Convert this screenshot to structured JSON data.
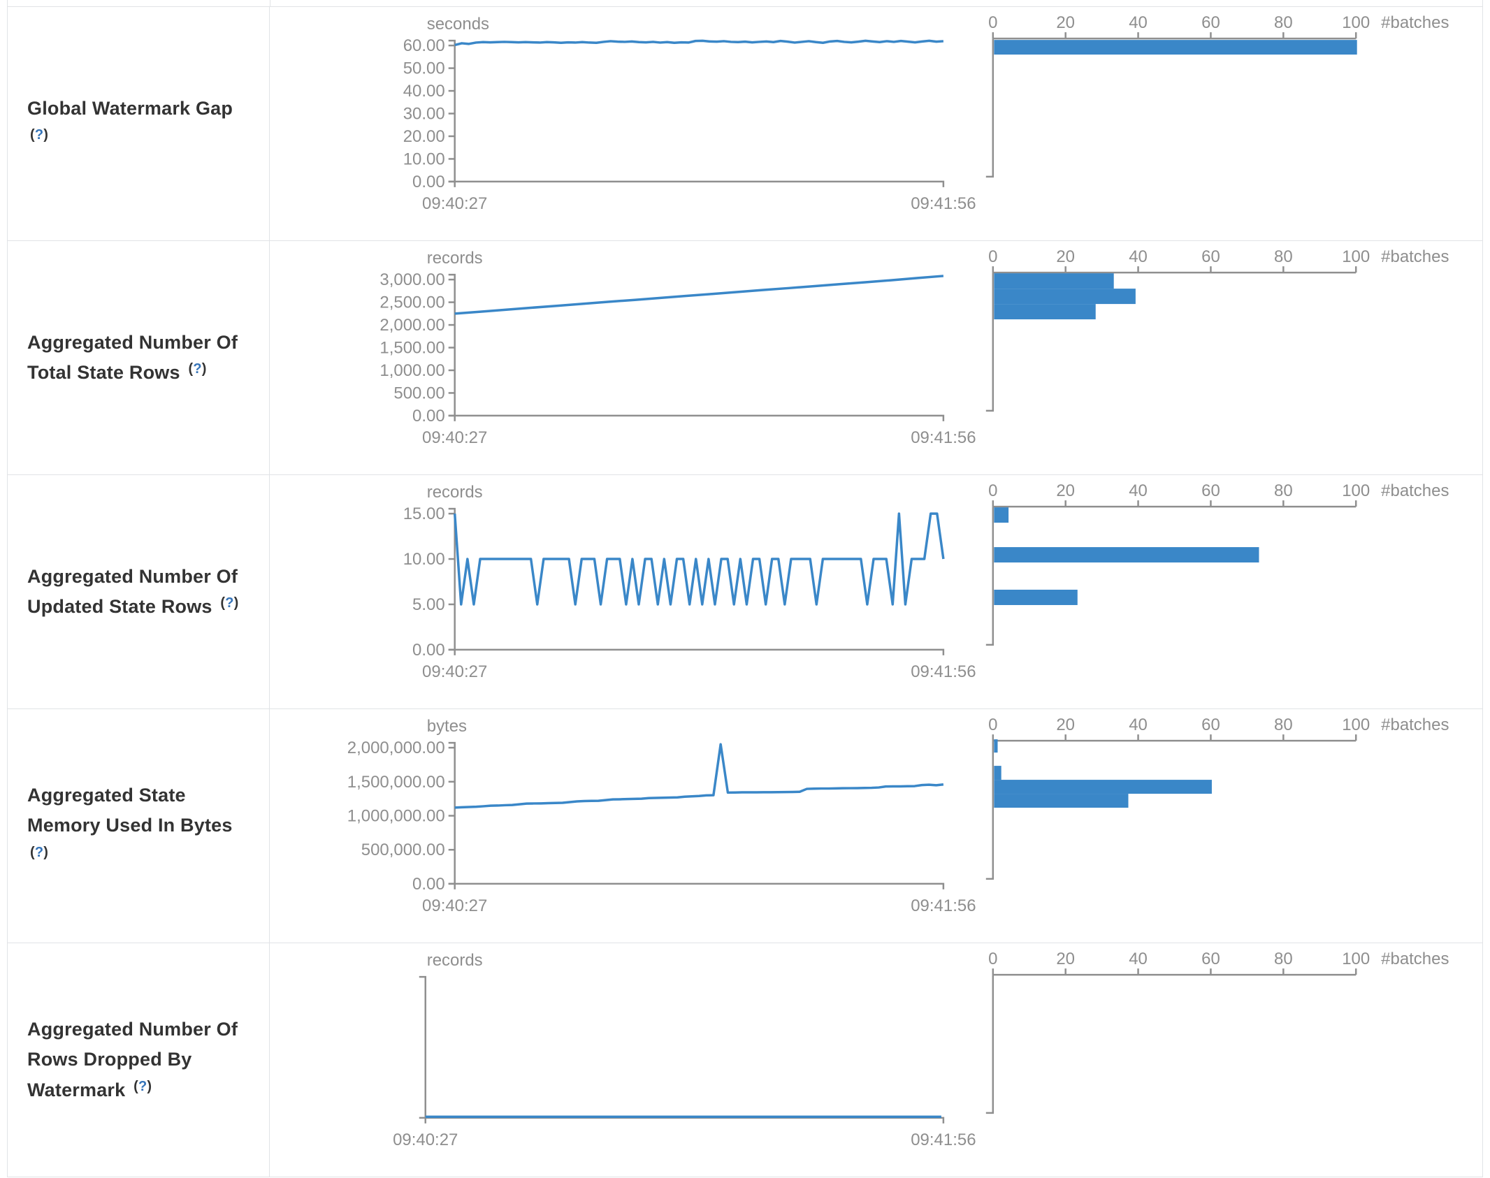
{
  "colors": {
    "accent": "#3a87c8",
    "axis_line": "#8f8f8f",
    "axis_text": "#8e8e8e",
    "title_text": "#333333",
    "help_link": "#3574b9",
    "border": "#e1e3e6",
    "background": "#ffffff"
  },
  "x_axis": {
    "start": "09:40:27",
    "end": "09:41:56"
  },
  "hist_axis": {
    "ticks": [
      "0",
      "20",
      "40",
      "60",
      "80",
      "100"
    ],
    "label": "#batches"
  },
  "rows": [
    {
      "title": "Global Watermark Gap",
      "help": {
        "open": "(",
        "q": "?",
        "close": ")"
      }
    },
    {
      "title": "Aggregated Number Of Total State Rows",
      "help": {
        "open": "(",
        "q": "?",
        "close": ")"
      }
    },
    {
      "title": "Aggregated Number Of Updated State Rows",
      "help": {
        "open": "(",
        "q": "?",
        "close": ")"
      }
    },
    {
      "title": "Aggregated State Memory Used In Bytes",
      "help": {
        "open": "(",
        "q": "?",
        "close": ")"
      }
    },
    {
      "title": "Aggregated Number Of Rows Dropped By Watermark",
      "help": {
        "open": "(",
        "q": "?",
        "close": ")"
      }
    }
  ],
  "chart_data": [
    {
      "type": "line",
      "title": "Global Watermark Gap",
      "unit": "seconds",
      "x_start": "09:40:27",
      "x_end": "09:41:56",
      "y_ticks": [
        60,
        50,
        40,
        30,
        20,
        10,
        0
      ],
      "y_tick_labels": [
        "60.00",
        "50.00",
        "40.00",
        "30.00",
        "20.00",
        "10.00",
        "0.00"
      ],
      "scale_max": 60,
      "series": [
        60.2,
        61.0,
        60.7,
        61.3,
        61.5,
        61.4,
        61.5,
        61.6,
        61.5,
        61.4,
        61.5,
        61.4,
        61.3,
        61.5,
        61.4,
        61.2,
        61.4,
        61.3,
        61.5,
        61.3,
        61.2,
        61.6,
        61.9,
        61.7,
        61.6,
        61.8,
        61.5,
        61.4,
        61.6,
        61.3,
        61.5,
        61.2,
        61.4,
        61.3,
        62.0,
        62.1,
        61.8,
        61.7,
        61.9,
        61.6,
        61.5,
        61.7,
        61.4,
        61.6,
        61.8,
        61.5,
        62.0,
        61.7,
        61.3,
        61.6,
        61.9,
        61.5,
        61.2,
        61.8,
        62.0,
        61.6,
        61.4,
        61.7,
        62.1,
        61.8,
        61.5,
        61.9,
        61.6,
        62.0,
        61.7,
        61.4,
        61.8,
        62.1,
        61.7,
        61.9
      ],
      "histogram": {
        "type": "bar",
        "label": "#batches",
        "ticks": [
          0,
          20,
          40,
          60,
          80,
          100
        ],
        "bars": [
          {
            "count": 100,
            "y": 47,
            "h": 21
          }
        ]
      }
    },
    {
      "type": "line",
      "title": "Aggregated Number Of Total State Rows",
      "unit": "records",
      "x_start": "09:40:27",
      "x_end": "09:41:56",
      "y_ticks": [
        3000,
        2500,
        2000,
        1500,
        1000,
        500,
        0
      ],
      "y_tick_labels": [
        "3,000.00",
        "2,500.00",
        "2,000.00",
        "1,500.00",
        "1,000.00",
        "500.00",
        "0.00"
      ],
      "scale_max": 3000,
      "series": [
        2250,
        2293,
        2336,
        2380,
        2423,
        2466,
        2510,
        2553,
        2596,
        2640,
        2683,
        2726,
        2770,
        2813,
        2856,
        2900,
        2943,
        2986,
        3035,
        3080
      ],
      "histogram": {
        "type": "bar",
        "label": "#batches",
        "ticks": [
          0,
          20,
          40,
          60,
          80,
          100
        ],
        "bars": [
          {
            "count": 33,
            "y": 46,
            "h": 22
          },
          {
            "count": 39,
            "y": 68,
            "h": 22
          },
          {
            "count": 28,
            "y": 90,
            "h": 22
          }
        ]
      }
    },
    {
      "type": "line",
      "title": "Aggregated Number Of Updated State Rows",
      "unit": "records",
      "x_start": "09:40:27",
      "x_end": "09:41:56",
      "y_ticks": [
        15,
        10,
        5,
        0
      ],
      "y_tick_labels": [
        "15.00",
        "10.00",
        "5.00",
        "0.00"
      ],
      "scale_max": 15,
      "series": [
        15,
        5,
        10,
        5,
        10,
        10,
        10,
        10,
        10,
        10,
        10,
        10,
        10,
        5,
        10,
        10,
        10,
        10,
        10,
        5,
        10,
        10,
        10,
        5,
        10,
        10,
        10,
        5,
        10,
        5,
        10,
        10,
        5,
        10,
        5,
        10,
        10,
        5,
        10,
        5,
        10,
        5,
        10,
        10,
        5,
        10,
        5,
        10,
        10,
        5,
        10,
        10,
        5,
        10,
        10,
        10,
        10,
        5,
        10,
        10,
        10,
        10,
        10,
        10,
        10,
        5,
        10,
        10,
        10,
        5,
        15,
        5,
        10,
        10,
        10,
        15,
        15,
        10
      ],
      "histogram": {
        "type": "bar",
        "label": "#batches",
        "ticks": [
          0,
          20,
          40,
          60,
          80,
          100
        ],
        "bars": [
          {
            "count": 4,
            "y": 46,
            "h": 22
          },
          {
            "count": 73,
            "y": 103,
            "h": 22
          },
          {
            "count": 23,
            "y": 164,
            "h": 22
          }
        ]
      }
    },
    {
      "type": "line",
      "title": "Aggregated State Memory Used In Bytes",
      "unit": "bytes",
      "x_start": "09:40:27",
      "x_end": "09:41:56",
      "y_ticks": [
        2000000,
        1500000,
        1000000,
        500000,
        0
      ],
      "y_tick_labels": [
        "2,000,000.00",
        "1,500,000.00",
        "1,000,000.00",
        "500,000.00",
        "0.00"
      ],
      "scale_max": 2000000,
      "series": [
        1120000,
        1125000,
        1128000,
        1132000,
        1140000,
        1148000,
        1150000,
        1155000,
        1158000,
        1168000,
        1178000,
        1180000,
        1182000,
        1185000,
        1188000,
        1190000,
        1200000,
        1210000,
        1215000,
        1218000,
        1220000,
        1230000,
        1240000,
        1242000,
        1245000,
        1248000,
        1250000,
        1260000,
        1262000,
        1265000,
        1268000,
        1270000,
        1280000,
        1285000,
        1290000,
        1300000,
        1302000,
        2050000,
        1340000,
        1342000,
        1344000,
        1344000,
        1345000,
        1346000,
        1346000,
        1347000,
        1348000,
        1350000,
        1352000,
        1395000,
        1398000,
        1400000,
        1400000,
        1402000,
        1404000,
        1405000,
        1406000,
        1408000,
        1410000,
        1415000,
        1430000,
        1432000,
        1432000,
        1434000,
        1436000,
        1450000,
        1455000,
        1448000,
        1460000
      ],
      "histogram": {
        "type": "bar",
        "label": "#batches",
        "ticks": [
          0,
          20,
          40,
          60,
          80,
          100
        ],
        "bars": [
          {
            "count": 1,
            "y": 43,
            "h": 19
          },
          {
            "count": 2,
            "y": 81,
            "h": 20
          },
          {
            "count": 60,
            "y": 101,
            "h": 20
          },
          {
            "count": 37,
            "y": 121,
            "h": 20
          }
        ]
      }
    },
    {
      "type": "line",
      "title": "Aggregated Number Of Rows Dropped By Watermark",
      "unit": "records",
      "x_start": "09:40:27",
      "x_end": "09:41:56",
      "y_ticks": [],
      "y_tick_labels": [],
      "scale_max": 0,
      "series": [
        0,
        0,
        0,
        0,
        0,
        0,
        0,
        0,
        0,
        0
      ],
      "histogram": {
        "type": "bar",
        "label": "#batches",
        "ticks": [
          0,
          20,
          40,
          60,
          80,
          100
        ],
        "bars": []
      }
    }
  ]
}
